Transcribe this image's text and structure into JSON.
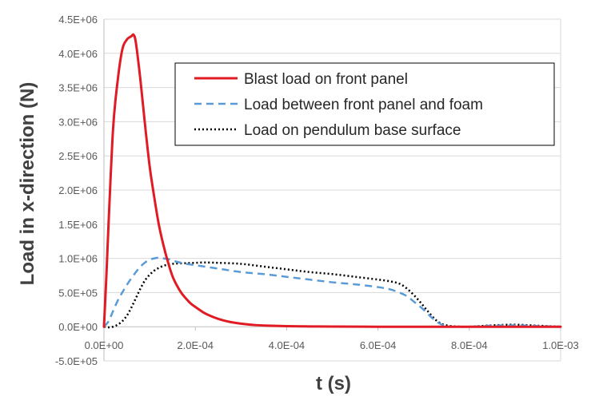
{
  "chart_data": {
    "type": "line",
    "title": "",
    "xlabel": "t (s)",
    "ylabel": "Load in x-direction (N)",
    "xlim": [
      0,
      0.001
    ],
    "ylim": [
      -500000,
      4500000
    ],
    "x_ticks": [
      0,
      0.0002,
      0.0004,
      0.0006,
      0.0008,
      0.001
    ],
    "x_tick_labels": [
      "0.0E+00",
      "2.0E-04",
      "4.0E-04",
      "6.0E-04",
      "8.0E-04",
      "1.0E-03"
    ],
    "y_ticks": [
      -500000,
      0,
      500000,
      1000000,
      1500000,
      2000000,
      2500000,
      3000000,
      3500000,
      4000000,
      4500000
    ],
    "y_tick_labels": [
      "-5.0E+05",
      "0.0E+00",
      "5.0E+05",
      "1.0E+06",
      "1.5E+06",
      "2.0E+06",
      "2.5E+06",
      "3.0E+06",
      "3.5E+06",
      "4.0E+06",
      "4.5E+06"
    ],
    "grid": "horizontal",
    "legend_position": "top-right",
    "series": [
      {
        "name": "Blast load on front panel",
        "color": "#e01b24",
        "style": "solid",
        "x": [
          0,
          5e-06,
          1e-05,
          2e-05,
          3e-05,
          4e-05,
          5e-05,
          6e-05,
          6.5e-05,
          7e-05,
          8e-05,
          9e-05,
          0.0001,
          0.00011,
          0.00012,
          0.00013,
          0.00014,
          0.00015,
          0.00016,
          0.00017,
          0.00018,
          0.00019,
          0.0002,
          0.00022,
          0.00024,
          0.00026,
          0.00028,
          0.0003,
          0.00033,
          0.00036,
          0.0004,
          0.00045,
          0.0005,
          0.0006,
          0.0007,
          0.0008,
          0.0009,
          0.001
        ],
        "y": [
          0,
          700000,
          1500000,
          2900000,
          3600000,
          4050000,
          4200000,
          4250000,
          4270000,
          4150000,
          3600000,
          2950000,
          2350000,
          1900000,
          1500000,
          1200000,
          950000,
          740000,
          600000,
          490000,
          410000,
          340000,
          290000,
          200000,
          140000,
          95000,
          65000,
          45000,
          25000,
          15000,
          8000,
          4000,
          2000,
          0,
          0,
          0,
          0,
          0
        ]
      },
      {
        "name": "Load between front panel and foam",
        "color": "#5b9bd5",
        "style": "dashed",
        "x": [
          0,
          1e-05,
          2e-05,
          3e-05,
          4e-05,
          5e-05,
          6e-05,
          7e-05,
          8e-05,
          9e-05,
          0.0001,
          0.00011,
          0.00012,
          0.00013,
          0.00014,
          0.00015,
          0.00016,
          0.00018,
          0.0002,
          0.00025,
          0.0003,
          0.00035,
          0.0004,
          0.00045,
          0.0005,
          0.00055,
          0.0006,
          0.00063,
          0.00066,
          0.00068,
          0.0007,
          0.00072,
          0.00074,
          0.00076,
          0.0008,
          0.00085,
          0.0009,
          0.00095,
          0.001
        ],
        "y": [
          0,
          80000,
          230000,
          380000,
          500000,
          610000,
          710000,
          800000,
          880000,
          940000,
          980000,
          1000000,
          1010000,
          1000000,
          990000,
          970000,
          950000,
          920000,
          900000,
          850000,
          800000,
          770000,
          730000,
          690000,
          650000,
          620000,
          580000,
          540000,
          460000,
          360000,
          250000,
          120000,
          30000,
          0,
          0,
          15000,
          20000,
          10000,
          0
        ]
      },
      {
        "name": "Load on pendulum base surface",
        "color": "#000000",
        "style": "dotted",
        "x": [
          0,
          1e-05,
          2e-05,
          3e-05,
          4e-05,
          5e-05,
          6e-05,
          7e-05,
          8e-05,
          9e-05,
          0.0001,
          0.00011,
          0.00012,
          0.00013,
          0.00014,
          0.00015,
          0.00016,
          0.00018,
          0.0002,
          0.00022,
          0.00025,
          0.0003,
          0.00035,
          0.0004,
          0.00045,
          0.0005,
          0.00055,
          0.0006,
          0.00063,
          0.00065,
          0.00067,
          0.00069,
          0.00071,
          0.00073,
          0.00075,
          0.00078,
          0.0008,
          0.00085,
          0.0009,
          0.00095,
          0.001
        ],
        "y": [
          0,
          -10000,
          0,
          30000,
          80000,
          160000,
          280000,
          420000,
          560000,
          680000,
          760000,
          820000,
          860000,
          890000,
          910000,
          920000,
          925000,
          930000,
          935000,
          940000,
          935000,
          920000,
          880000,
          840000,
          800000,
          770000,
          730000,
          690000,
          660000,
          620000,
          520000,
          380000,
          220000,
          80000,
          20000,
          0,
          0,
          20000,
          30000,
          15000,
          0
        ]
      }
    ]
  }
}
